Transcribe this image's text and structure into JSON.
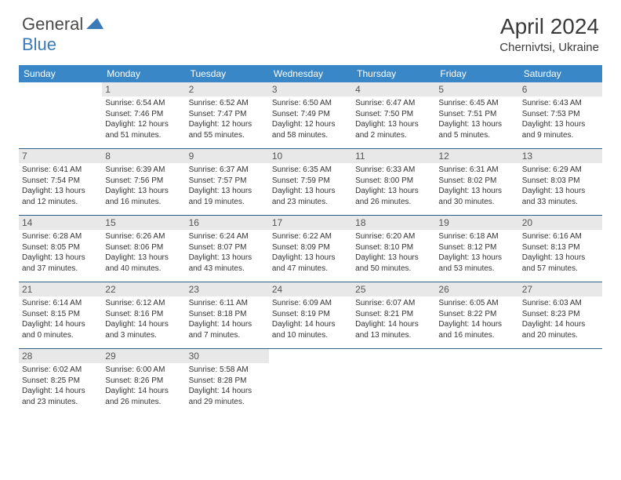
{
  "logo": {
    "general": "General",
    "blue": "Blue"
  },
  "title": "April 2024",
  "location": "Chernivtsi, Ukraine",
  "colors": {
    "header_bg": "#3a87c7",
    "header_text": "#ffffff",
    "daynum_bg": "#e8e8e8",
    "daynum_text": "#555555",
    "body_text": "#333333",
    "border": "#2e5f8a",
    "logo_blue": "#3a7ab8",
    "logo_gray": "#4a4a4a"
  },
  "layout": {
    "cols": 7,
    "rows": 5,
    "first_dow_offset": 1
  },
  "dow": [
    "Sunday",
    "Monday",
    "Tuesday",
    "Wednesday",
    "Thursday",
    "Friday",
    "Saturday"
  ],
  "days": [
    {
      "n": 1,
      "sr": "6:54 AM",
      "ss": "7:46 PM",
      "dl": "12 hours and 51 minutes."
    },
    {
      "n": 2,
      "sr": "6:52 AM",
      "ss": "7:47 PM",
      "dl": "12 hours and 55 minutes."
    },
    {
      "n": 3,
      "sr": "6:50 AM",
      "ss": "7:49 PM",
      "dl": "12 hours and 58 minutes."
    },
    {
      "n": 4,
      "sr": "6:47 AM",
      "ss": "7:50 PM",
      "dl": "13 hours and 2 minutes."
    },
    {
      "n": 5,
      "sr": "6:45 AM",
      "ss": "7:51 PM",
      "dl": "13 hours and 5 minutes."
    },
    {
      "n": 6,
      "sr": "6:43 AM",
      "ss": "7:53 PM",
      "dl": "13 hours and 9 minutes."
    },
    {
      "n": 7,
      "sr": "6:41 AM",
      "ss": "7:54 PM",
      "dl": "13 hours and 12 minutes."
    },
    {
      "n": 8,
      "sr": "6:39 AM",
      "ss": "7:56 PM",
      "dl": "13 hours and 16 minutes."
    },
    {
      "n": 9,
      "sr": "6:37 AM",
      "ss": "7:57 PM",
      "dl": "13 hours and 19 minutes."
    },
    {
      "n": 10,
      "sr": "6:35 AM",
      "ss": "7:59 PM",
      "dl": "13 hours and 23 minutes."
    },
    {
      "n": 11,
      "sr": "6:33 AM",
      "ss": "8:00 PM",
      "dl": "13 hours and 26 minutes."
    },
    {
      "n": 12,
      "sr": "6:31 AM",
      "ss": "8:02 PM",
      "dl": "13 hours and 30 minutes."
    },
    {
      "n": 13,
      "sr": "6:29 AM",
      "ss": "8:03 PM",
      "dl": "13 hours and 33 minutes."
    },
    {
      "n": 14,
      "sr": "6:28 AM",
      "ss": "8:05 PM",
      "dl": "13 hours and 37 minutes."
    },
    {
      "n": 15,
      "sr": "6:26 AM",
      "ss": "8:06 PM",
      "dl": "13 hours and 40 minutes."
    },
    {
      "n": 16,
      "sr": "6:24 AM",
      "ss": "8:07 PM",
      "dl": "13 hours and 43 minutes."
    },
    {
      "n": 17,
      "sr": "6:22 AM",
      "ss": "8:09 PM",
      "dl": "13 hours and 47 minutes."
    },
    {
      "n": 18,
      "sr": "6:20 AM",
      "ss": "8:10 PM",
      "dl": "13 hours and 50 minutes."
    },
    {
      "n": 19,
      "sr": "6:18 AM",
      "ss": "8:12 PM",
      "dl": "13 hours and 53 minutes."
    },
    {
      "n": 20,
      "sr": "6:16 AM",
      "ss": "8:13 PM",
      "dl": "13 hours and 57 minutes."
    },
    {
      "n": 21,
      "sr": "6:14 AM",
      "ss": "8:15 PM",
      "dl": "14 hours and 0 minutes."
    },
    {
      "n": 22,
      "sr": "6:12 AM",
      "ss": "8:16 PM",
      "dl": "14 hours and 3 minutes."
    },
    {
      "n": 23,
      "sr": "6:11 AM",
      "ss": "8:18 PM",
      "dl": "14 hours and 7 minutes."
    },
    {
      "n": 24,
      "sr": "6:09 AM",
      "ss": "8:19 PM",
      "dl": "14 hours and 10 minutes."
    },
    {
      "n": 25,
      "sr": "6:07 AM",
      "ss": "8:21 PM",
      "dl": "14 hours and 13 minutes."
    },
    {
      "n": 26,
      "sr": "6:05 AM",
      "ss": "8:22 PM",
      "dl": "14 hours and 16 minutes."
    },
    {
      "n": 27,
      "sr": "6:03 AM",
      "ss": "8:23 PM",
      "dl": "14 hours and 20 minutes."
    },
    {
      "n": 28,
      "sr": "6:02 AM",
      "ss": "8:25 PM",
      "dl": "14 hours and 23 minutes."
    },
    {
      "n": 29,
      "sr": "6:00 AM",
      "ss": "8:26 PM",
      "dl": "14 hours and 26 minutes."
    },
    {
      "n": 30,
      "sr": "5:58 AM",
      "ss": "8:28 PM",
      "dl": "14 hours and 29 minutes."
    }
  ],
  "labels": {
    "sunrise": "Sunrise:",
    "sunset": "Sunset:",
    "daylight": "Daylight:"
  }
}
